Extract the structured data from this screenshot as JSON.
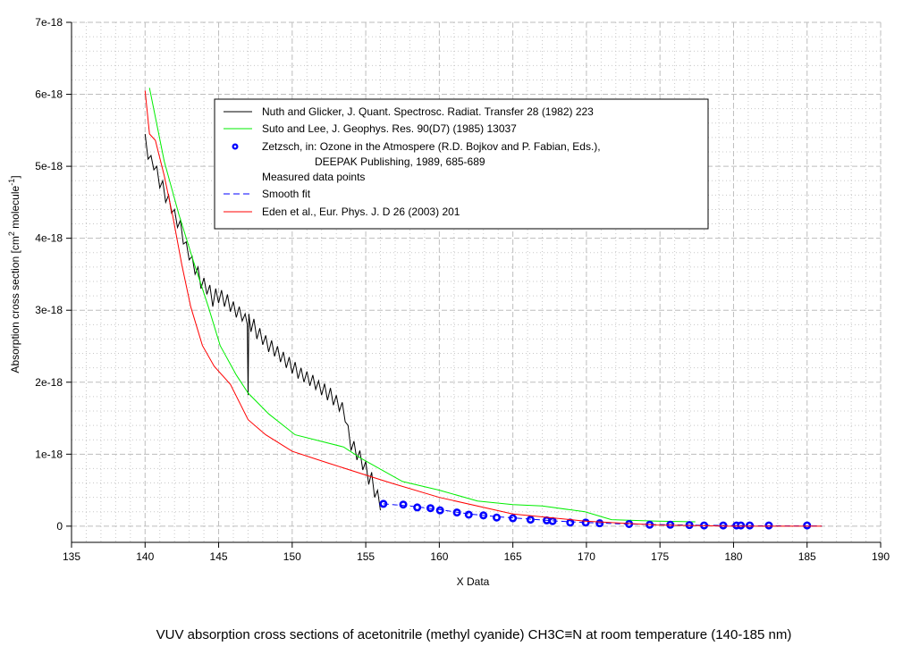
{
  "chart_data": {
    "type": "line",
    "title": "VUV absorption cross sections of acetonitrile (methyl cyanide) CH3C≡N at room temperature (140-185 nm)",
    "xlabel": "X Data",
    "ylabel": "Absorption cross section [cm",
    "ylabel_sup1": "2",
    "ylabel_mid": " molecule",
    "ylabel_sup2": "-1",
    "ylabel_end": "]",
    "y_unit": "1e-18",
    "xlim": [
      135,
      190
    ],
    "ylim": [
      -0.225,
      7
    ],
    "grid": true,
    "legend_placement": "top-center",
    "x_ticks": [
      135,
      140,
      145,
      150,
      155,
      160,
      165,
      170,
      175,
      180,
      185,
      190
    ],
    "x_tick_labels": [
      "135",
      "140",
      "145",
      "150",
      "155",
      "160",
      "165",
      "170",
      "175",
      "180",
      "185",
      "190"
    ],
    "y_ticks": [
      0,
      1,
      2,
      3,
      4,
      5,
      6,
      7
    ],
    "y_tick_labels": [
      "0",
      "1e-18",
      "2e-18",
      "3e-18",
      "4e-18",
      "5e-18",
      "6e-18",
      "7e-18"
    ],
    "legend": [
      {
        "label": "Nuth and Glicker, J. Quant. Spectrosc. Radiat. Transfer 28 (1982) 223",
        "color": "#000000",
        "style": "line"
      },
      {
        "label": "Suto and Lee, J. Geophys. Res. 90(D7) (1985) 13037",
        "color": "#00ee00",
        "style": "line"
      },
      {
        "label": "Zetzsch, in: Ozone in the Atmospere (R.D. Bojkov and P. Fabian, Eds.),",
        "label2": "DEEPAK Publishing, 1989, 685-689",
        "color": "#0000ff",
        "style": "marker"
      },
      {
        "label": "Measured data points",
        "style": "none"
      },
      {
        "label": "Smooth fit",
        "color": "#0000ff",
        "style": "dashed"
      },
      {
        "label": "Eden et al., Eur. Phys. J. D 26 (2003) 201",
        "color": "#ff0000",
        "style": "line"
      }
    ],
    "series": [
      {
        "name": "Nuth and Glicker",
        "color": "#000000",
        "x": [
          140,
          140.2,
          140.4,
          140.6,
          140.8,
          141,
          141.2,
          141.4,
          141.6,
          141.8,
          142,
          142.2,
          142.4,
          142.6,
          142.8,
          143,
          143.2,
          143.4,
          143.6,
          143.8,
          144,
          144.2,
          144.4,
          144.6,
          144.8,
          145,
          145.2,
          145.4,
          145.6,
          145.8,
          146,
          146.2,
          146.4,
          146.6,
          146.8,
          146.95,
          147,
          147.05,
          147.2,
          147.4,
          147.6,
          147.8,
          148,
          148.2,
          148.4,
          148.6,
          148.8,
          149,
          149.2,
          149.4,
          149.6,
          149.8,
          150,
          150.2,
          150.4,
          150.6,
          150.8,
          151,
          151.2,
          151.4,
          151.6,
          151.8,
          152,
          152.2,
          152.4,
          152.6,
          152.8,
          153,
          153.2,
          153.4,
          153.6,
          153.8,
          154,
          154.2,
          154.4,
          154.6,
          154.8,
          155,
          155.2,
          155.4,
          155.6,
          155.8,
          156
        ],
        "y": [
          5.45,
          5.1,
          5.15,
          4.95,
          5.0,
          4.7,
          4.8,
          4.5,
          4.6,
          4.35,
          4.4,
          4.15,
          4.25,
          3.92,
          3.95,
          3.7,
          3.75,
          3.5,
          3.6,
          3.3,
          3.45,
          3.22,
          3.35,
          3.05,
          3.3,
          3.1,
          3.28,
          3.05,
          3.22,
          2.98,
          3.12,
          2.9,
          3.05,
          2.85,
          2.95,
          2.8,
          1.82,
          2.95,
          2.7,
          2.88,
          2.6,
          2.75,
          2.52,
          2.65,
          2.42,
          2.58,
          2.36,
          2.5,
          2.28,
          2.42,
          2.2,
          2.35,
          2.12,
          2.28,
          2.05,
          2.2,
          2.0,
          2.15,
          1.95,
          2.1,
          1.9,
          2.02,
          1.82,
          1.98,
          1.75,
          1.92,
          1.68,
          1.82,
          1.6,
          1.72,
          1.45,
          1.4,
          1.05,
          1.18,
          0.92,
          1.05,
          0.78,
          0.9,
          0.58,
          0.75,
          0.4,
          0.5,
          0.22
        ]
      },
      {
        "name": "Suto and Lee",
        "color": "#00ee00",
        "x": [
          140.3,
          141.3,
          142.3,
          143.3,
          144.3,
          145.1,
          146.2,
          147.0,
          148.4,
          150.2,
          153.5,
          154.7,
          157.5,
          160,
          162.6,
          165,
          167.0,
          169.9,
          171.7,
          174.8,
          177.4
        ],
        "y": [
          6.09,
          5.07,
          4.33,
          3.67,
          3.05,
          2.51,
          2.1,
          1.85,
          1.56,
          1.27,
          1.1,
          0.94,
          0.62,
          0.5,
          0.35,
          0.3,
          0.28,
          0.2,
          0.09,
          0.07,
          0.06
        ]
      },
      {
        "name": "Zetzsch measured",
        "color": "#0000ff",
        "style": "marker",
        "x": [
          156.2,
          157.55,
          158.5,
          159.4,
          160.05,
          161.2,
          162.0,
          163.0,
          163.9,
          165.0,
          166.2,
          167.3,
          167.7,
          168.9,
          169.95,
          170.9,
          172.9,
          174.3,
          175.7,
          177.0,
          178.0,
          179.3,
          180.2,
          180.5,
          181.1,
          182.4,
          185.0
        ],
        "y": [
          0.31,
          0.3,
          0.26,
          0.25,
          0.22,
          0.19,
          0.16,
          0.15,
          0.12,
          0.11,
          0.09,
          0.08,
          0.07,
          0.05,
          0.05,
          0.04,
          0.03,
          0.02,
          0.02,
          0.015,
          0.01,
          0.01,
          0.01,
          0.01,
          0.01,
          0.01,
          0.01
        ]
      },
      {
        "name": "Zetzsch smooth fit",
        "color": "#0000ff",
        "style": "dashed",
        "x": [
          156.2,
          158,
          160,
          162,
          164,
          166,
          168,
          170,
          172,
          174,
          176,
          178,
          180,
          182,
          184,
          186
        ],
        "y": [
          0.31,
          0.28,
          0.23,
          0.17,
          0.13,
          0.1,
          0.07,
          0.05,
          0.035,
          0.025,
          0.018,
          0.012,
          0.008,
          0.005,
          0.003,
          0.002
        ]
      },
      {
        "name": "Eden et al.",
        "color": "#ff0000",
        "x": [
          140,
          140.3,
          140.7,
          141.3,
          141.9,
          142.5,
          143.1,
          143.9,
          144.7,
          145.8,
          147.0,
          148.2,
          150.0,
          152.4,
          154.7,
          156.7,
          160.0,
          165.0,
          169.9,
          174.8,
          179.8,
          185,
          186
        ],
        "y": [
          6.05,
          5.45,
          5.36,
          4.87,
          4.29,
          3.63,
          3.05,
          2.51,
          2.22,
          1.97,
          1.48,
          1.27,
          1.04,
          0.88,
          0.73,
          0.6,
          0.4,
          0.17,
          0.07,
          0.016,
          0.0,
          0.0,
          0.0
        ]
      }
    ]
  }
}
